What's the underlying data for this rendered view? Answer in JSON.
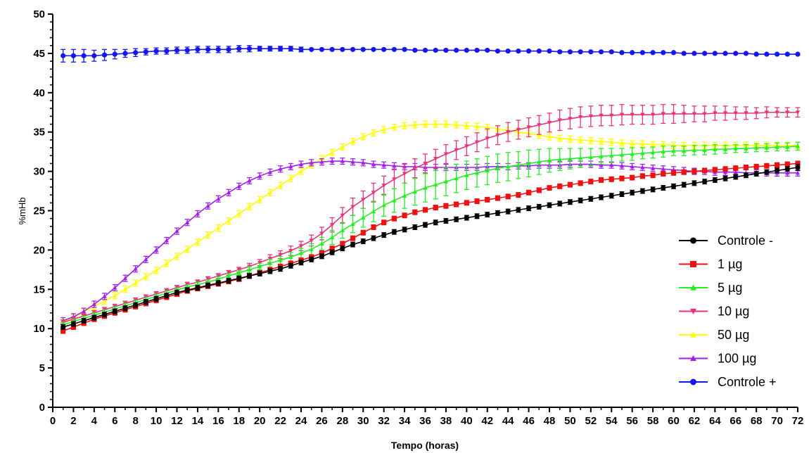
{
  "chart_data": {
    "type": "line",
    "xlabel": "Tempo (horas)",
    "ylabel": "%mHb",
    "xlim": [
      0,
      72
    ],
    "ylim": [
      0,
      50
    ],
    "x_ticks": [
      0,
      2,
      4,
      6,
      8,
      10,
      12,
      14,
      16,
      18,
      20,
      22,
      24,
      26,
      28,
      30,
      32,
      34,
      36,
      38,
      40,
      42,
      44,
      46,
      48,
      50,
      52,
      54,
      56,
      58,
      60,
      62,
      64,
      66,
      68,
      70,
      72
    ],
    "y_ticks": [
      0,
      5,
      10,
      15,
      20,
      25,
      30,
      35,
      40,
      45,
      50
    ],
    "grid": false,
    "legend_position": "bottom-right",
    "x": [
      1,
      2,
      3,
      4,
      5,
      6,
      7,
      8,
      9,
      10,
      11,
      12,
      13,
      14,
      15,
      16,
      17,
      18,
      19,
      20,
      21,
      22,
      23,
      24,
      25,
      26,
      27,
      28,
      29,
      30,
      31,
      32,
      33,
      34,
      35,
      36,
      37,
      38,
      39,
      40,
      41,
      42,
      43,
      44,
      45,
      46,
      47,
      48,
      49,
      50,
      51,
      52,
      53,
      54,
      55,
      56,
      57,
      58,
      59,
      60,
      61,
      62,
      63,
      64,
      65,
      66,
      67,
      68,
      69,
      70,
      71,
      72
    ],
    "series": [
      {
        "name": "Controle -",
        "color": "#000000",
        "marker": "circle",
        "values": [
          10.2,
          10.6,
          11.0,
          11.4,
          11.8,
          12.2,
          12.6,
          13.0,
          13.4,
          13.8,
          14.2,
          14.6,
          14.9,
          15.2,
          15.5,
          15.8,
          16.1,
          16.4,
          16.7,
          17.0,
          17.3,
          17.6,
          18.0,
          18.4,
          18.8,
          19.2,
          19.7,
          20.2,
          20.7,
          21.1,
          21.5,
          21.9,
          22.3,
          22.6,
          22.9,
          23.2,
          23.5,
          23.7,
          23.9,
          24.1,
          24.3,
          24.5,
          24.7,
          24.9,
          25.1,
          25.3,
          25.5,
          25.7,
          25.9,
          26.1,
          26.3,
          26.5,
          26.7,
          26.9,
          27.1,
          27.3,
          27.5,
          27.7,
          27.9,
          28.1,
          28.3,
          28.5,
          28.7,
          28.9,
          29.1,
          29.3,
          29.5,
          29.7,
          29.9,
          30.1,
          30.3,
          30.5
        ],
        "errors": [
          0.3,
          0.3,
          0.3,
          0.3,
          0.3,
          0.3,
          0.3,
          0.3,
          0.3,
          0.3,
          0.3,
          0.3,
          0.3,
          0.3,
          0.3,
          0.3,
          0.3,
          0.3,
          0.3,
          0.3,
          0.3,
          0.3,
          0.3,
          0.3,
          0.3,
          0.3,
          0.3,
          0.3,
          0.3,
          0.3,
          0.3,
          0.3,
          0.3,
          0.3,
          0.3,
          0.3,
          0.3,
          0.3,
          0.3,
          0.3,
          0.3,
          0.3,
          0.3,
          0.3,
          0.3,
          0.3,
          0.3,
          0.3,
          0.3,
          0.3,
          0.3,
          0.3,
          0.3,
          0.3,
          0.3,
          0.3,
          0.3,
          0.3,
          0.3,
          0.3,
          0.3,
          0.3,
          0.3,
          0.3,
          0.3,
          0.3,
          0.3,
          0.3,
          0.3,
          0.3,
          0.3,
          0.4
        ]
      },
      {
        "name": "1 µg",
        "color": "#ee1111",
        "marker": "square",
        "values": [
          9.7,
          10.2,
          10.7,
          11.2,
          11.6,
          12.0,
          12.4,
          12.8,
          13.2,
          13.6,
          14.0,
          14.4,
          14.8,
          15.1,
          15.4,
          15.7,
          16.0,
          16.3,
          16.7,
          17.1,
          17.5,
          17.9,
          18.3,
          18.7,
          19.1,
          19.6,
          20.2,
          20.8,
          21.5,
          22.2,
          22.9,
          23.5,
          24.0,
          24.4,
          24.8,
          25.1,
          25.4,
          25.6,
          25.8,
          26.0,
          26.2,
          26.4,
          26.6,
          26.8,
          27.0,
          27.3,
          27.6,
          27.9,
          28.1,
          28.3,
          28.5,
          28.7,
          28.9,
          29.0,
          29.1,
          29.2,
          29.4,
          29.5,
          29.7,
          29.8,
          29.9,
          30.0,
          30.1,
          30.2,
          30.3,
          30.4,
          30.5,
          30.6,
          30.7,
          30.8,
          30.9,
          31.0
        ],
        "errors": [
          0.3,
          0.3,
          0.3,
          0.3,
          0.3,
          0.3,
          0.3,
          0.3,
          0.3,
          0.3,
          0.3,
          0.3,
          0.3,
          0.3,
          0.3,
          0.3,
          0.3,
          0.3,
          0.3,
          0.3,
          0.3,
          0.3,
          0.3,
          0.3,
          0.3,
          0.3,
          0.3,
          0.3,
          0.3,
          0.3,
          0.3,
          0.3,
          0.3,
          0.3,
          0.3,
          0.3,
          0.3,
          0.3,
          0.3,
          0.3,
          0.3,
          0.3,
          0.3,
          0.3,
          0.3,
          0.3,
          0.3,
          0.3,
          0.3,
          0.3,
          0.3,
          0.3,
          0.3,
          0.3,
          0.3,
          0.3,
          0.3,
          0.3,
          0.3,
          0.3,
          0.3,
          0.3,
          0.3,
          0.3,
          0.3,
          0.3,
          0.3,
          0.3,
          0.3,
          0.3,
          0.3,
          0.3
        ]
      },
      {
        "name": "5 µg",
        "color": "#22ee22",
        "marker": "triangle-up",
        "values": [
          10.5,
          10.9,
          11.3,
          11.7,
          12.1,
          12.5,
          12.9,
          13.3,
          13.7,
          14.1,
          14.5,
          14.9,
          15.3,
          15.6,
          15.9,
          16.3,
          16.7,
          17.1,
          17.5,
          17.9,
          18.3,
          18.7,
          19.1,
          19.6,
          20.1,
          20.8,
          21.6,
          22.5,
          23.3,
          24.1,
          24.9,
          25.7,
          26.3,
          26.9,
          27.4,
          27.9,
          28.3,
          28.7,
          29.1,
          29.5,
          29.8,
          30.1,
          30.4,
          30.6,
          30.8,
          31.0,
          31.2,
          31.4,
          31.5,
          31.6,
          31.7,
          31.8,
          31.9,
          32.0,
          32.1,
          32.2,
          32.3,
          32.4,
          32.5,
          32.6,
          32.6,
          32.7,
          32.7,
          32.8,
          32.8,
          32.9,
          32.9,
          33.0,
          33.0,
          33.1,
          33.1,
          33.2
        ],
        "errors": [
          0.3,
          0.3,
          0.3,
          0.3,
          0.3,
          0.3,
          0.3,
          0.3,
          0.3,
          0.3,
          0.3,
          0.3,
          0.3,
          0.3,
          0.3,
          0.3,
          0.3,
          0.3,
          0.4,
          0.4,
          0.5,
          0.5,
          0.6,
          0.6,
          0.7,
          0.8,
          0.9,
          1.0,
          1.1,
          1.2,
          1.3,
          1.4,
          1.5,
          1.6,
          1.7,
          1.8,
          1.8,
          1.8,
          1.8,
          1.8,
          1.8,
          1.8,
          1.8,
          1.8,
          1.7,
          1.7,
          1.6,
          1.5,
          1.4,
          1.3,
          1.2,
          1.1,
          1.0,
          0.9,
          0.8,
          0.8,
          0.7,
          0.7,
          0.7,
          0.6,
          0.6,
          0.6,
          0.6,
          0.6,
          0.5,
          0.5,
          0.5,
          0.5,
          0.5,
          0.5,
          0.5,
          0.5
        ]
      },
      {
        "name": "10 µg",
        "color": "#e8337a",
        "marker": "triangle-down",
        "values": [
          10.8,
          11.2,
          11.6,
          12.0,
          12.4,
          12.8,
          13.2,
          13.6,
          14.0,
          14.4,
          14.8,
          15.2,
          15.6,
          15.9,
          16.3,
          16.7,
          17.1,
          17.5,
          17.9,
          18.4,
          18.9,
          19.4,
          19.9,
          20.5,
          21.2,
          22.1,
          23.2,
          24.4,
          25.5,
          26.4,
          27.3,
          28.2,
          29.0,
          29.7,
          30.4,
          31.0,
          31.6,
          32.2,
          32.7,
          33.2,
          33.7,
          34.2,
          34.6,
          35.0,
          35.3,
          35.6,
          35.9,
          36.2,
          36.5,
          36.7,
          36.9,
          37.0,
          37.1,
          37.1,
          37.2,
          37.2,
          37.2,
          37.2,
          37.3,
          37.3,
          37.3,
          37.3,
          37.3,
          37.4,
          37.4,
          37.4,
          37.4,
          37.4,
          37.5,
          37.5,
          37.5,
          37.5
        ],
        "errors": [
          0.3,
          0.3,
          0.3,
          0.3,
          0.3,
          0.3,
          0.3,
          0.3,
          0.3,
          0.3,
          0.3,
          0.3,
          0.3,
          0.3,
          0.3,
          0.3,
          0.3,
          0.3,
          0.4,
          0.4,
          0.5,
          0.5,
          0.6,
          0.6,
          0.7,
          0.8,
          0.9,
          1.0,
          1.1,
          1.1,
          1.2,
          1.2,
          1.2,
          1.2,
          1.2,
          1.2,
          1.2,
          1.2,
          1.2,
          1.2,
          1.2,
          1.2,
          1.2,
          1.2,
          1.2,
          1.2,
          1.2,
          1.2,
          1.3,
          1.3,
          1.3,
          1.3,
          1.3,
          1.3,
          1.3,
          1.2,
          1.2,
          1.2,
          1.2,
          1.2,
          1.1,
          1.0,
          1.0,
          0.9,
          0.9,
          0.8,
          0.8,
          0.7,
          0.7,
          0.6,
          0.6,
          0.6
        ]
      },
      {
        "name": "50 µg",
        "color": "#ffff00",
        "marker": "triangle-up",
        "values": [
          10.8,
          11.4,
          12.1,
          12.8,
          13.5,
          14.2,
          15.0,
          15.8,
          16.6,
          17.4,
          18.3,
          19.2,
          20.1,
          21.0,
          21.9,
          22.8,
          23.7,
          24.6,
          25.5,
          26.4,
          27.3,
          28.2,
          29.1,
          30.0,
          30.8,
          31.6,
          32.4,
          33.1,
          33.8,
          34.4,
          34.9,
          35.3,
          35.6,
          35.8,
          35.9,
          36.0,
          36.0,
          36.0,
          35.9,
          35.8,
          35.7,
          35.6,
          35.4,
          35.2,
          35.0,
          34.8,
          34.6,
          34.4,
          34.2,
          34.1,
          34.0,
          33.9,
          33.8,
          33.7,
          33.6,
          33.5,
          33.5,
          33.4,
          33.4,
          33.3,
          33.3,
          33.3,
          33.3,
          33.3,
          33.3,
          33.3,
          33.3,
          33.3,
          33.3,
          33.3,
          33.3,
          33.3
        ],
        "errors": [
          0.4,
          0.4,
          0.4,
          0.4,
          0.4,
          0.4,
          0.4,
          0.4,
          0.4,
          0.4,
          0.4,
          0.4,
          0.4,
          0.4,
          0.4,
          0.4,
          0.4,
          0.4,
          0.4,
          0.4,
          0.4,
          0.4,
          0.4,
          0.4,
          0.4,
          0.4,
          0.4,
          0.4,
          0.4,
          0.4,
          0.4,
          0.4,
          0.4,
          0.4,
          0.4,
          0.4,
          0.4,
          0.4,
          0.4,
          0.4,
          0.4,
          0.4,
          0.4,
          0.4,
          0.4,
          0.4,
          0.4,
          0.4,
          0.4,
          0.4,
          0.4,
          0.4,
          0.4,
          0.4,
          0.4,
          0.4,
          0.4,
          0.4,
          0.4,
          0.4,
          0.4,
          0.4,
          0.4,
          0.4,
          0.4,
          0.4,
          0.4,
          0.4,
          0.4,
          0.4,
          0.4,
          0.4
        ]
      },
      {
        "name": "100 µg",
        "color": "#a020f0",
        "marker": "triangle-up",
        "values": [
          11.0,
          11.5,
          12.2,
          13.1,
          14.1,
          15.2,
          16.4,
          17.6,
          18.8,
          20.0,
          21.2,
          22.4,
          23.5,
          24.6,
          25.6,
          26.5,
          27.3,
          28.1,
          28.8,
          29.4,
          29.9,
          30.3,
          30.6,
          30.9,
          31.1,
          31.2,
          31.3,
          31.3,
          31.2,
          31.1,
          30.9,
          30.8,
          30.7,
          30.6,
          30.6,
          30.5,
          30.5,
          30.5,
          30.5,
          30.5,
          30.5,
          30.6,
          30.6,
          30.6,
          30.7,
          30.7,
          30.8,
          30.8,
          30.8,
          30.9,
          30.9,
          30.9,
          30.8,
          30.8,
          30.7,
          30.6,
          30.5,
          30.4,
          30.3,
          30.2,
          30.1,
          30.0,
          30.0,
          29.9,
          29.9,
          29.9,
          29.8,
          29.8,
          29.8,
          29.8,
          29.8,
          29.8
        ],
        "errors": [
          0.4,
          0.4,
          0.4,
          0.4,
          0.4,
          0.4,
          0.4,
          0.4,
          0.4,
          0.4,
          0.4,
          0.4,
          0.4,
          0.4,
          0.4,
          0.4,
          0.4,
          0.4,
          0.4,
          0.4,
          0.4,
          0.4,
          0.4,
          0.4,
          0.4,
          0.4,
          0.4,
          0.4,
          0.4,
          0.4,
          0.4,
          0.4,
          0.4,
          0.4,
          0.4,
          0.4,
          0.4,
          0.4,
          0.4,
          0.4,
          0.4,
          0.4,
          0.4,
          0.4,
          0.4,
          0.4,
          0.4,
          0.4,
          0.4,
          0.4,
          0.4,
          0.4,
          0.4,
          0.4,
          0.4,
          0.4,
          0.4,
          0.4,
          0.4,
          0.4,
          0.4,
          0.4,
          0.4,
          0.4,
          0.4,
          0.4,
          0.4,
          0.4,
          0.4,
          0.4,
          0.4,
          0.4
        ]
      },
      {
        "name": "Controle +",
        "color": "#1515ee",
        "marker": "circle",
        "values": [
          44.7,
          44.7,
          44.7,
          44.7,
          44.8,
          44.9,
          45.0,
          45.1,
          45.2,
          45.3,
          45.3,
          45.4,
          45.4,
          45.5,
          45.5,
          45.5,
          45.5,
          45.6,
          45.6,
          45.6,
          45.6,
          45.6,
          45.6,
          45.5,
          45.5,
          45.5,
          45.5,
          45.5,
          45.5,
          45.5,
          45.5,
          45.5,
          45.5,
          45.5,
          45.4,
          45.4,
          45.4,
          45.4,
          45.4,
          45.4,
          45.4,
          45.4,
          45.3,
          45.3,
          45.3,
          45.3,
          45.3,
          45.3,
          45.2,
          45.2,
          45.2,
          45.2,
          45.2,
          45.2,
          45.1,
          45.1,
          45.1,
          45.1,
          45.1,
          45.1,
          45.0,
          45.0,
          45.0,
          45.0,
          45.0,
          45.0,
          45.0,
          44.9,
          44.9,
          44.9,
          44.9,
          44.9
        ],
        "errors": [
          0.8,
          0.8,
          0.8,
          0.7,
          0.7,
          0.6,
          0.5,
          0.5,
          0.4,
          0.4,
          0.4,
          0.4,
          0.4,
          0.4,
          0.4,
          0.4,
          0.4,
          0.4,
          0.4,
          0.3,
          0.3,
          0.3,
          0.3,
          0.3,
          0.2,
          0.2,
          0.2,
          0.2,
          0.2,
          0.2,
          0.2,
          0.2,
          0.2,
          0.2,
          0.2,
          0.2,
          0.2,
          0.2,
          0.2,
          0.2,
          0.2,
          0.2,
          0.2,
          0.2,
          0.2,
          0.2,
          0.2,
          0.2,
          0.2,
          0.2,
          0.2,
          0.2,
          0.2,
          0.2,
          0.2,
          0.2,
          0.2,
          0.2,
          0.2,
          0.2,
          0.2,
          0.2,
          0.2,
          0.2,
          0.2,
          0.2,
          0.2,
          0.2,
          0.2,
          0.2,
          0.2,
          0.2
        ]
      }
    ]
  }
}
